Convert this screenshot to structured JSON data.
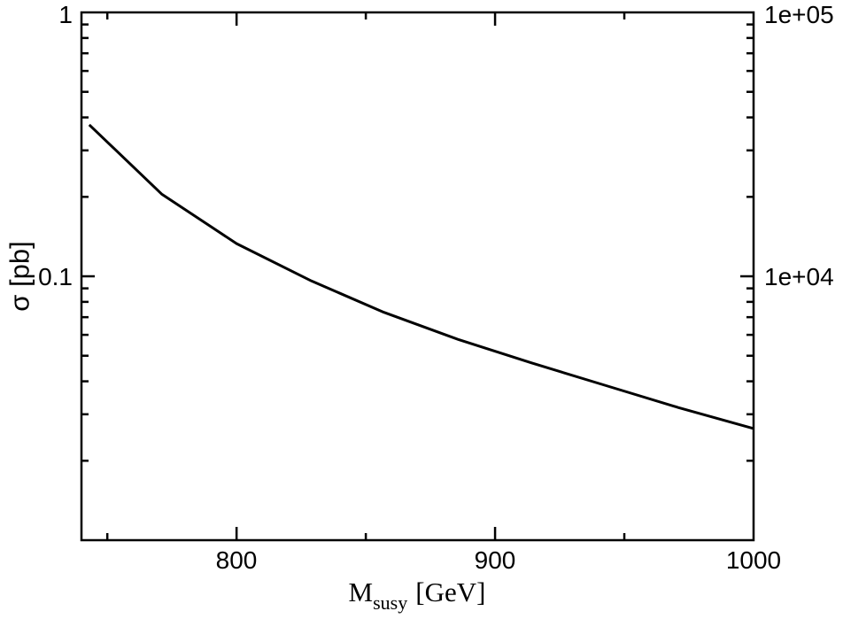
{
  "chart_data": {
    "type": "line",
    "title": "",
    "xlabel": {
      "main": "M",
      "sub": "susy",
      "unit": "[GeV]"
    },
    "ylabel": "σ [pb]",
    "xlim": [
      740,
      1000
    ],
    "ylim": [
      0.01,
      1
    ],
    "yscale": "log",
    "y2lim": [
      1000,
      100000
    ],
    "y2scale": "log",
    "grid": false,
    "legend": "none",
    "x_tick_labels": [
      "800",
      "900",
      "1000"
    ],
    "y_tick_labels": [
      "0.1",
      "1"
    ],
    "y2_tick_labels": [
      "1e+04",
      "1e+05"
    ],
    "series": [
      {
        "color": "#000000",
        "x": [
          743,
          771,
          800,
          829,
          857,
          886,
          914,
          943,
          971,
          1000
        ],
        "y": [
          0.375,
          0.205,
          0.133,
          0.096,
          0.073,
          0.0575,
          0.047,
          0.0385,
          0.0318,
          0.0265
        ]
      }
    ]
  }
}
